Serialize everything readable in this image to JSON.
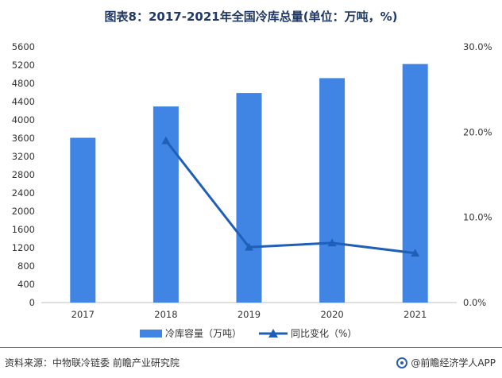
{
  "title": "图表8：2017-2021年全国冷库总量(单位：万吨，%)",
  "footer": {
    "source": "资料来源：中物联冷链委 前瞻产业研究院",
    "brand": "@前瞻经济学人APP"
  },
  "colors": {
    "bar": "#4185e4",
    "line": "#1f5fb8",
    "title": "#1f3864"
  },
  "chart_data": {
    "type": "bar",
    "categories": [
      "2017",
      "2018",
      "2019",
      "2020",
      "2021"
    ],
    "series": [
      {
        "name": "冷库容量（万吨）",
        "type": "bar",
        "axis": "left",
        "values": [
          3609,
          4295,
          4590,
          4915,
          5224
        ]
      },
      {
        "name": "同比变化（%）",
        "type": "line",
        "axis": "right",
        "values": [
          null,
          19.0,
          6.5,
          7.0,
          5.8
        ]
      }
    ],
    "y_left": {
      "min": 0,
      "max": 5600,
      "step": 400,
      "ticks": [
        "0",
        "400",
        "800",
        "1200",
        "1600",
        "2000",
        "2400",
        "2800",
        "3200",
        "3600",
        "4000",
        "4400",
        "4800",
        "5200",
        "5600"
      ]
    },
    "y_right": {
      "min": 0,
      "max": 30,
      "ticks": [
        "0.0%",
        "10.0%",
        "20.0%",
        "30.0%"
      ]
    },
    "grid": false,
    "legend": "bottom-center"
  }
}
